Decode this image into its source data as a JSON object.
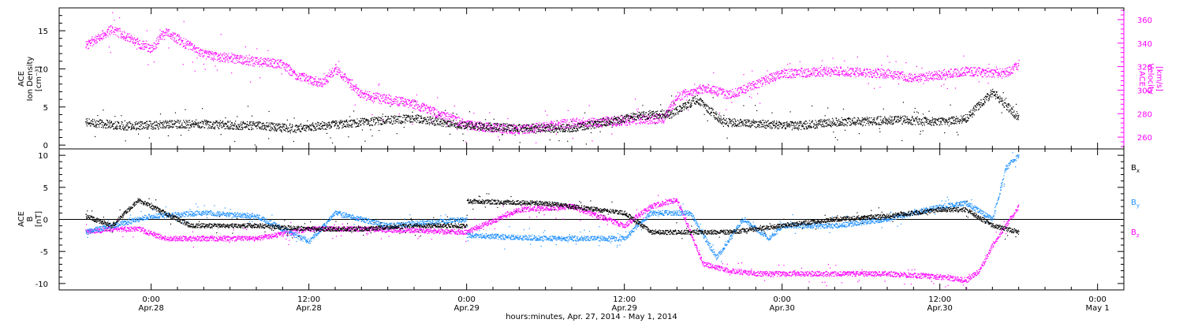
{
  "chart_data": [
    {
      "type": "scatter",
      "panel": "plasma",
      "ylabel_left": [
        "ACE",
        "Ion Density",
        "[cm⁻³]"
      ],
      "ylabel_right": [
        "ACE",
        "Velocity",
        "[km/s]"
      ],
      "ylim_left": [
        -0.5,
        18
      ],
      "ylim_right": [
        250,
        370
      ],
      "yticks_left": [
        "0",
        "5",
        "10",
        "15"
      ],
      "yticks_right": [
        "260",
        "280",
        "300",
        "320",
        "340",
        "360"
      ],
      "colors": {
        "density": "#000000",
        "velocity": "#ff00ff"
      },
      "series": [
        {
          "name": "Ion Density",
          "axis": "left",
          "color": "#000000",
          "x": [
            "2014-04-27T19:00",
            "2014-04-27T22:00",
            "2014-04-28T03:00",
            "2014-04-28T08:00",
            "2014-04-28T11:00",
            "2014-04-28T16:00",
            "2014-04-28T20:00",
            "2014-04-29T00:00",
            "2014-04-29T04:00",
            "2014-04-29T08:00",
            "2014-04-29T12:00",
            "2014-04-29T14:00",
            "2014-04-29T15:30",
            "2014-04-29T17:30",
            "2014-04-29T19:30",
            "2014-04-30T01:00",
            "2014-04-30T04:00",
            "2014-04-30T09:00",
            "2014-04-30T12:00",
            "2014-04-30T14:00",
            "2014-04-30T16:00",
            "2014-04-30T18:00"
          ],
          "y": [
            3.0,
            2.5,
            2.8,
            2.5,
            2.2,
            3.0,
            3.5,
            2.5,
            2.2,
            2.2,
            3.5,
            4.0,
            4.0,
            6.0,
            3.0,
            2.5,
            3.0,
            3.3,
            3.0,
            3.5,
            7.0,
            3.5
          ]
        },
        {
          "name": "Velocity",
          "axis": "right",
          "color": "#ff00ff",
          "x": [
            "2014-04-27T19:00",
            "2014-04-27T21:00",
            "2014-04-28T00:00",
            "2014-04-28T01:00",
            "2014-04-28T04:00",
            "2014-04-28T08:00",
            "2014-04-28T10:00",
            "2014-04-28T11:00",
            "2014-04-28T13:00",
            "2014-04-28T14:00",
            "2014-04-28T16:00",
            "2014-04-28T20:00",
            "2014-04-29T00:00",
            "2014-04-29T04:00",
            "2014-04-29T08:00",
            "2014-04-29T12:00",
            "2014-04-29T15:00",
            "2014-04-29T16:00",
            "2014-04-29T18:00",
            "2014-04-29T20:00",
            "2014-04-30T00:00",
            "2014-04-30T04:00",
            "2014-04-30T08:00",
            "2014-04-30T10:00",
            "2014-04-30T14:00",
            "2014-04-30T17:00",
            "2014-04-30T18:00"
          ],
          "y": [
            338,
            352,
            334,
            350,
            330,
            324,
            322,
            312,
            306,
            318,
            296,
            288,
            270,
            266,
            272,
            274,
            276,
            294,
            302,
            296,
            314,
            316,
            314,
            310,
            316,
            314,
            322
          ]
        }
      ]
    },
    {
      "type": "scatter",
      "panel": "magnetic-field",
      "ylabel_left": [
        "ACE",
        "B",
        "[nT]"
      ],
      "ylim": [
        -11,
        11
      ],
      "yticks": [
        "-10",
        "-5",
        "0",
        "5",
        "10"
      ],
      "zero_line": true,
      "legend_position": "right",
      "colors": {
        "Bx": "#000000",
        "By": "#1e90ff",
        "Bz": "#ff00ff"
      },
      "series": [
        {
          "name": "Bx",
          "label_main": "B",
          "label_sub": "x",
          "color": "#000000",
          "x": [
            "2014-04-27T19:00",
            "2014-04-27T21:00",
            "2014-04-27T23:00",
            "2014-04-28T03:00",
            "2014-04-28T08:00",
            "2014-04-28T12:00",
            "2014-04-28T16:00",
            "2014-04-28T20:00",
            "2014-04-28T23:59",
            "2014-04-29T00:00",
            "2014-04-29T06:00",
            "2014-04-29T12:00",
            "2014-04-29T14:00",
            "2014-04-29T18:00",
            "2014-04-29T20:00",
            "2014-04-30T00:00",
            "2014-04-30T04:00",
            "2014-04-30T08:00",
            "2014-04-30T12:00",
            "2014-04-30T14:00",
            "2014-04-30T16:00",
            "2014-04-30T18:00"
          ],
          "y": [
            0.5,
            -1,
            3,
            -1,
            -1,
            -1.5,
            -1.5,
            -1,
            -1,
            2.8,
            2.5,
            1,
            -2,
            -2,
            -2,
            -1,
            0,
            0.5,
            1.5,
            1.5,
            -1,
            -2
          ]
        },
        {
          "name": "By",
          "label_main": "B",
          "label_sub": "y",
          "color": "#1e90ff",
          "x": [
            "2014-04-27T19:00",
            "2014-04-27T21:00",
            "2014-04-28T00:00",
            "2014-04-28T04:00",
            "2014-04-28T08:00",
            "2014-04-28T12:00",
            "2014-04-28T14:00",
            "2014-04-28T18:00",
            "2014-04-28T23:59",
            "2014-04-29T00:00",
            "2014-04-29T06:00",
            "2014-04-29T12:00",
            "2014-04-29T14:00",
            "2014-04-29T17:00",
            "2014-04-29T19:00",
            "2014-04-29T21:00",
            "2014-04-29T23:00",
            "2014-04-30T00:00",
            "2014-04-30T04:00",
            "2014-04-30T08:00",
            "2014-04-30T12:00",
            "2014-04-30T14:00",
            "2014-04-30T16:00",
            "2014-04-30T17:00",
            "2014-04-30T18:00"
          ],
          "y": [
            -2,
            -1,
            0.5,
            1,
            0.5,
            -3.5,
            1,
            -1,
            0,
            -2.5,
            -3,
            -3,
            1,
            1,
            -6,
            0,
            -3,
            -1,
            -1,
            0,
            2,
            2.5,
            0,
            8,
            10
          ]
        },
        {
          "name": "Bz",
          "label_main": "B",
          "label_sub": "z",
          "color": "#ff00ff",
          "x": [
            "2014-04-27T19:00",
            "2014-04-27T21:00",
            "2014-04-27T23:00",
            "2014-04-28T01:00",
            "2014-04-28T08:00",
            "2014-04-28T12:00",
            "2014-04-28T16:00",
            "2014-04-28T23:59",
            "2014-04-29T04:00",
            "2014-04-29T08:00",
            "2014-04-29T12:00",
            "2014-04-29T14:00",
            "2014-04-29T16:00",
            "2014-04-29T18:00",
            "2014-04-29T20:00",
            "2014-04-29T22:00",
            "2014-04-30T00:00",
            "2014-04-30T04:00",
            "2014-04-30T08:00",
            "2014-04-30T12:00",
            "2014-04-30T14:00",
            "2014-04-30T15:00",
            "2014-04-30T16:00",
            "2014-04-30T17:00",
            "2014-04-30T18:00"
          ],
          "y": [
            -2,
            -1.5,
            -1.5,
            -3,
            -3,
            -1.5,
            -1.5,
            -2,
            1.5,
            2,
            -1,
            2,
            3,
            -7,
            -8,
            -8.5,
            -8.5,
            -8.5,
            -8.5,
            -9,
            -9.5,
            -8,
            -4,
            -1,
            2
          ]
        }
      ]
    }
  ],
  "x_axis": {
    "range": [
      "2014-04-27T17:00",
      "2014-05-01T02:00"
    ],
    "ticks": [
      {
        "time": "2014-04-28T00:00",
        "label": "0:00",
        "date": "Apr.28"
      },
      {
        "time": "2014-04-28T12:00",
        "label": "12:00",
        "date": "Apr.28"
      },
      {
        "time": "2014-04-29T00:00",
        "label": "0:00",
        "date": "Apr.29"
      },
      {
        "time": "2014-04-29T12:00",
        "label": "12:00",
        "date": "Apr.29"
      },
      {
        "time": "2014-04-30T00:00",
        "label": "0:00",
        "date": "Apr.30"
      },
      {
        "time": "2014-04-30T12:00",
        "label": "12:00",
        "date": "Apr.30"
      },
      {
        "time": "2014-05-01T00:00",
        "label": "0:00",
        "date": "May 1"
      }
    ],
    "xlabel": "hours:minutes, Apr. 27, 2014 - May  1, 2014"
  }
}
